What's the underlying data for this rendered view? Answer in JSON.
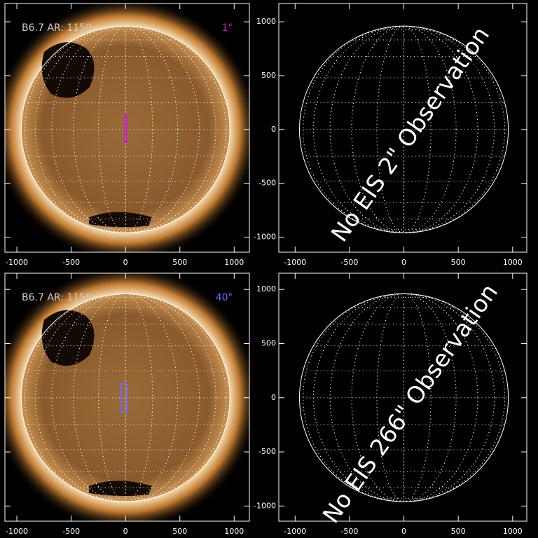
{
  "chart_data": [
    {
      "type": "map",
      "image": true,
      "label": "B6.7 AR: 1150",
      "scale_label": "1\"",
      "scale_color": "#c020c0",
      "slit": {
        "x": [
          -8,
          8
        ],
        "y": [
          -120,
          140
        ]
      },
      "solar_radius": 960,
      "xlim": [
        -1110,
        1140
      ],
      "ylim": [
        -1140,
        1170
      ],
      "xticks": [
        -1000,
        -500,
        0,
        500,
        1000
      ],
      "yticks": [
        -1000,
        -500,
        0,
        500,
        1000
      ]
    },
    {
      "type": "map",
      "image": false,
      "annotation": "No EIS 2\" Observation",
      "solar_radius": 960,
      "xlim": [
        -1150,
        1130
      ],
      "ylim": [
        -1140,
        1170
      ],
      "xticks": [
        -1000,
        -500,
        0,
        500,
        1000
      ],
      "yticks": [
        -1000,
        -500,
        0,
        500,
        1000
      ]
    },
    {
      "type": "map",
      "image": true,
      "label": "B6.7 AR: 1150",
      "scale_label": "40\"",
      "scale_color": "#6a6aff",
      "slit": {
        "x": [
          -40,
          12
        ],
        "y": [
          -130,
          130
        ]
      },
      "solar_radius": 960,
      "xlim": [
        -1110,
        1140
      ],
      "ylim": [
        -1140,
        1150
      ],
      "xticks": [
        -1000,
        -500,
        0,
        500,
        1000
      ],
      "yticks": [
        -1000,
        -500,
        0,
        500,
        1000
      ]
    },
    {
      "type": "map",
      "image": false,
      "annotation": "No EIS 266\" Observation",
      "solar_radius": 960,
      "xlim": [
        -1150,
        1130
      ],
      "ylim": [
        -1140,
        1150
      ],
      "xticks": [
        -1000,
        -500,
        0,
        500,
        1000
      ],
      "yticks": [
        -1000,
        -500,
        0,
        500,
        1000
      ]
    }
  ]
}
